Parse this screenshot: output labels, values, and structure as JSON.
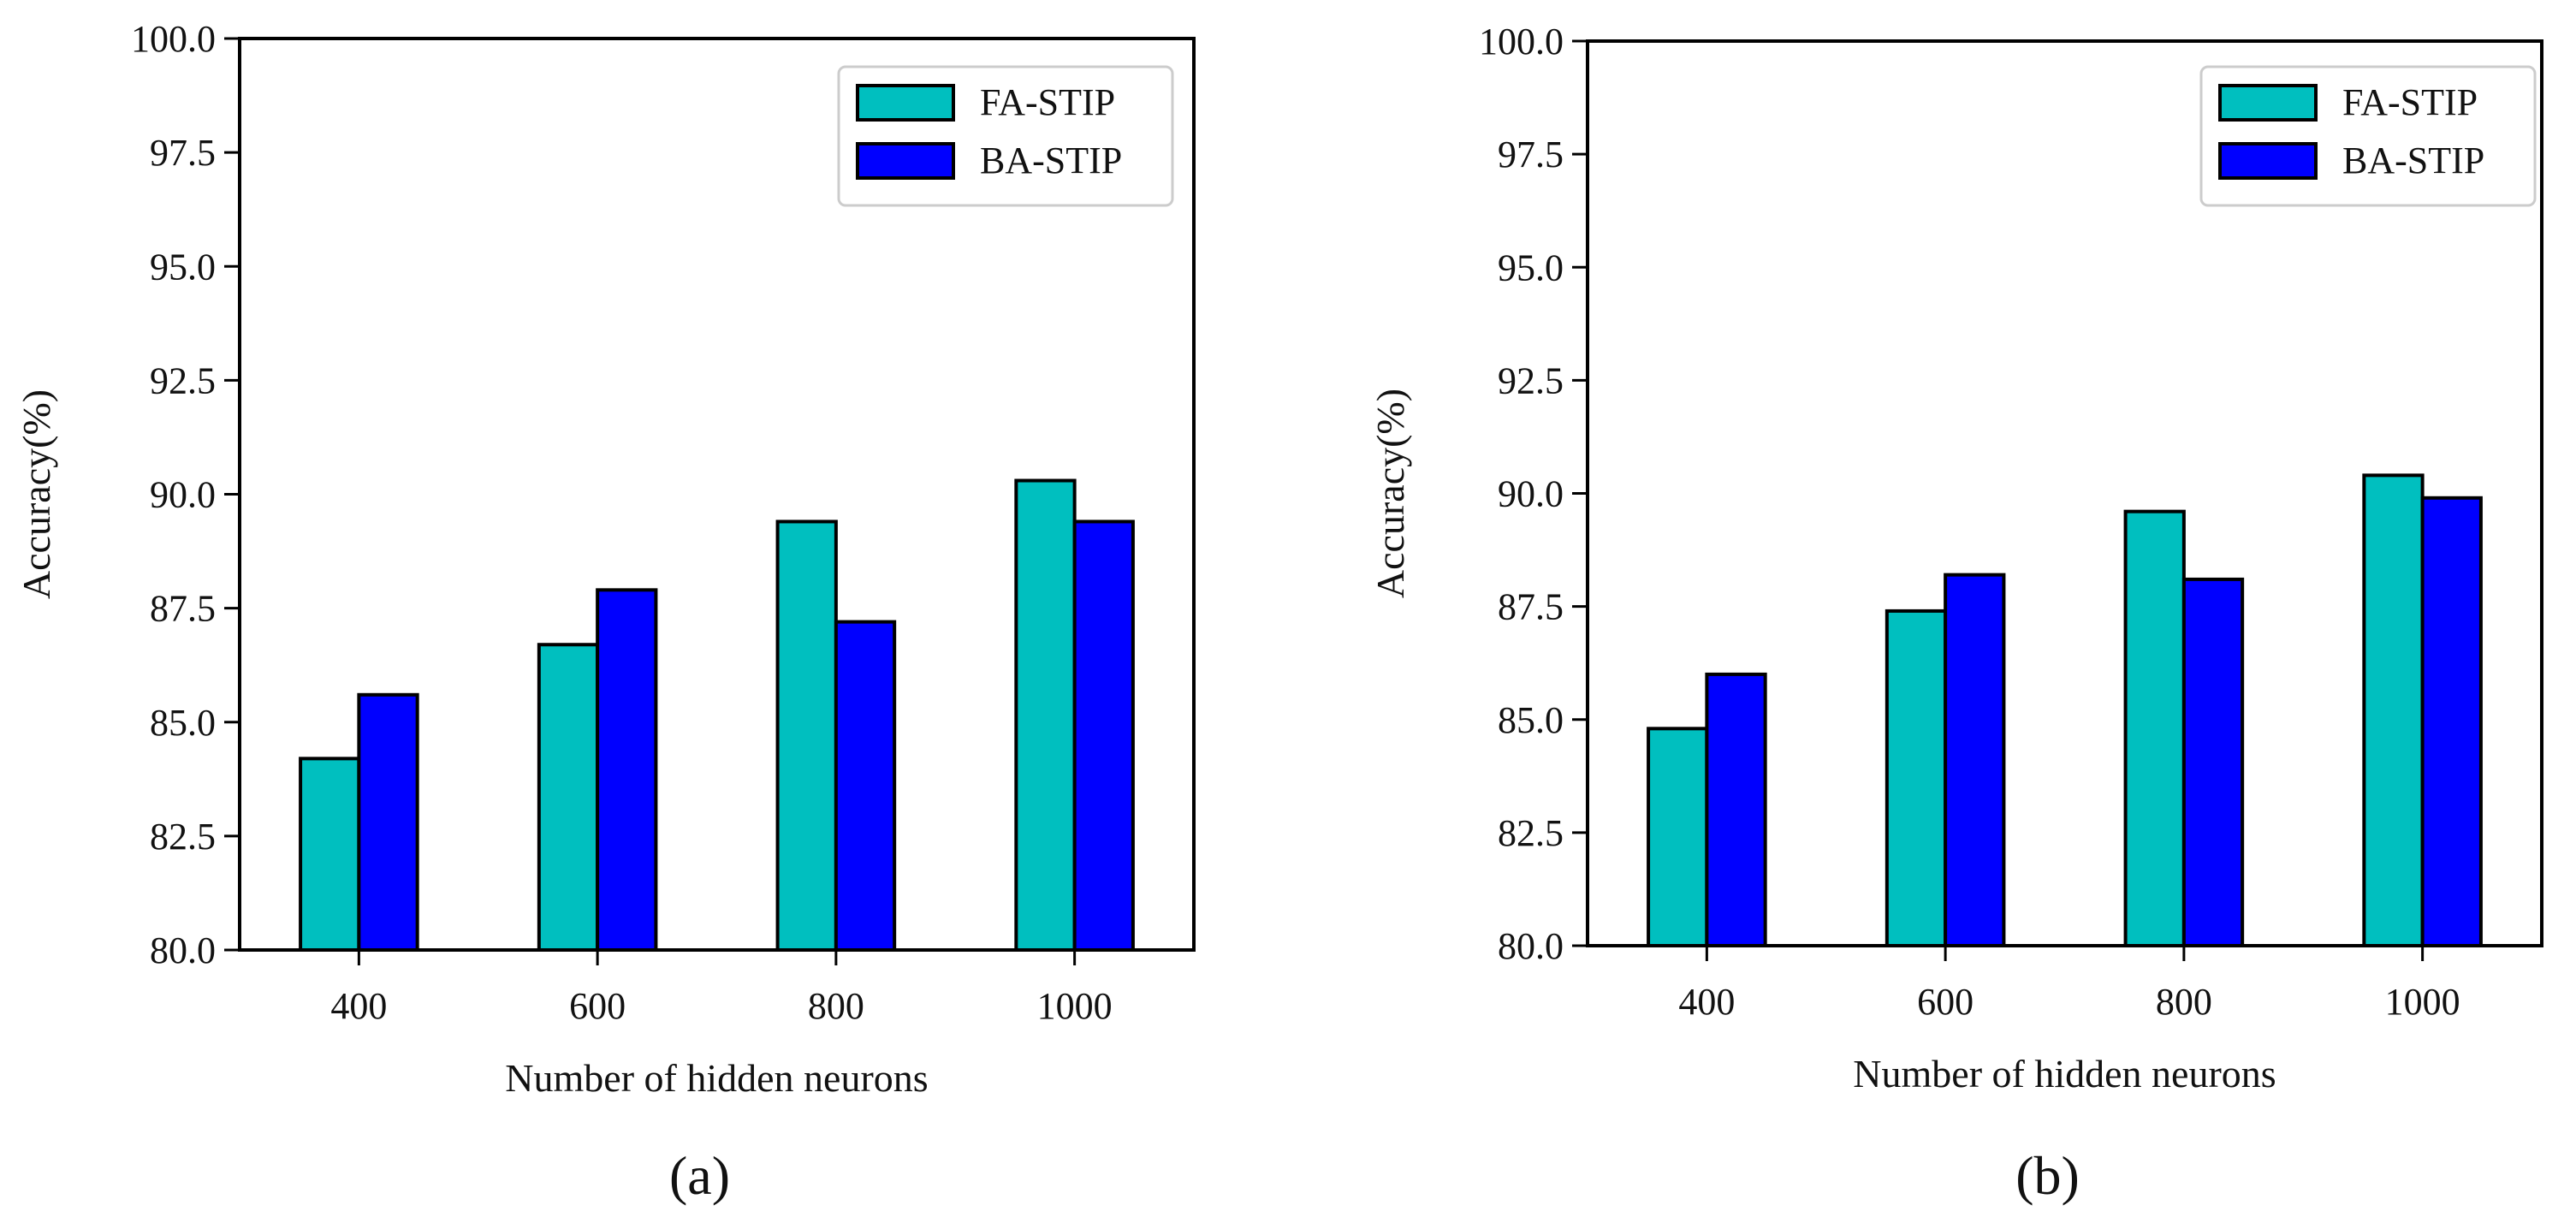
{
  "chart_data": [
    {
      "type": "bar",
      "panel_label": "(a)",
      "categories": [
        "400",
        "600",
        "800",
        "1000"
      ],
      "series": [
        {
          "name": "FA-STIP",
          "values": [
            84.2,
            86.7,
            89.4,
            90.3
          ]
        },
        {
          "name": "BA-STIP",
          "values": [
            85.6,
            87.9,
            87.2,
            89.4
          ]
        }
      ],
      "title": "",
      "xlabel": "Number of hidden neurons",
      "ylabel": "Accuracy(%)",
      "ylim": [
        80.0,
        100.0
      ],
      "yticks": [
        "80.0",
        "82.5",
        "85.0",
        "87.5",
        "90.0",
        "92.5",
        "95.0",
        "97.5",
        "100.0"
      ],
      "grid": false,
      "legend_position": "top-right"
    },
    {
      "type": "bar",
      "panel_label": "(b)",
      "categories": [
        "400",
        "600",
        "800",
        "1000"
      ],
      "series": [
        {
          "name": "FA-STIP",
          "values": [
            84.8,
            87.4,
            89.6,
            90.4
          ]
        },
        {
          "name": "BA-STIP",
          "values": [
            86.0,
            88.2,
            88.1,
            89.9
          ]
        }
      ],
      "title": "",
      "xlabel": "Number of hidden neurons",
      "ylabel": "Accuracy(%)",
      "ylim": [
        80.0,
        100.0
      ],
      "yticks": [
        "80.0",
        "82.5",
        "85.0",
        "87.5",
        "90.0",
        "92.5",
        "95.0",
        "97.5",
        "100.0"
      ],
      "grid": false,
      "legend_position": "top-right"
    }
  ],
  "colors": {
    "FA-STIP": "#00BFBF",
    "BA-STIP": "#0000FF",
    "edge": "#000000"
  }
}
